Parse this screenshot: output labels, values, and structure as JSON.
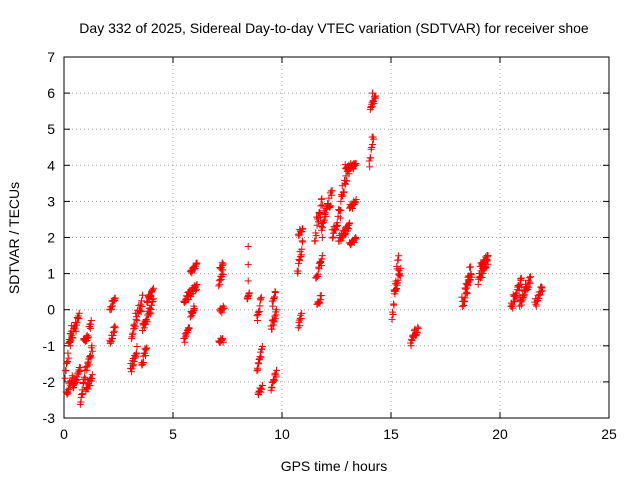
{
  "chart_data": {
    "type": "scatter",
    "title": "Day 332 of 2025, Sidereal Day-to-day VTEC variation (SDTVAR) for receiver shoe",
    "xlabel": "GPS time / hours",
    "ylabel": "SDTVAR / TECUs",
    "xlim": [
      0,
      25
    ],
    "ylim": [
      -3,
      7
    ],
    "xticks": [
      0,
      5,
      10,
      15,
      20,
      25
    ],
    "yticks": [
      -3,
      -2,
      -1,
      0,
      1,
      2,
      3,
      4,
      5,
      6,
      7
    ],
    "grid": true,
    "marker": "+",
    "color": "#ff0000",
    "segments": [
      {
        "x0": 0.05,
        "x1": 0.35,
        "y0": -1.9,
        "y1": -0.4
      },
      {
        "x0": 0.1,
        "x1": 0.4,
        "y0": -2.4,
        "y1": -1.8
      },
      {
        "x0": 0.25,
        "x1": 0.7,
        "y0": -1.0,
        "y1": -0.1
      },
      {
        "x0": 0.4,
        "x1": 0.75,
        "y0": -2.2,
        "y1": -1.6
      },
      {
        "x0": 0.75,
        "x1": 1.0,
        "y0": -2.7,
        "y1": -1.5
      },
      {
        "x0": 0.9,
        "x1": 1.25,
        "y0": -1.1,
        "y1": -0.3
      },
      {
        "x0": 1.0,
        "x1": 1.3,
        "y0": -2.3,
        "y1": -1.8
      },
      {
        "x0": 1.05,
        "x1": 1.3,
        "y0": -1.7,
        "y1": -1.0
      },
      {
        "x0": 2.1,
        "x1": 2.35,
        "y0": -1.0,
        "y1": -0.4
      },
      {
        "x0": 2.1,
        "x1": 2.35,
        "y0": 0.0,
        "y1": 0.4
      },
      {
        "x0": 3.05,
        "x1": 3.35,
        "y0": -1.8,
        "y1": -1.0
      },
      {
        "x0": 3.1,
        "x1": 3.6,
        "y0": -0.8,
        "y1": 0.4
      },
      {
        "x0": 3.55,
        "x1": 3.8,
        "y0": -1.6,
        "y1": -1.0
      },
      {
        "x0": 3.6,
        "x1": 4.1,
        "y0": -0.6,
        "y1": 0.3
      },
      {
        "x0": 3.8,
        "x1": 4.1,
        "y0": 0.2,
        "y1": 0.6
      },
      {
        "x0": 5.5,
        "x1": 5.75,
        "y0": -0.9,
        "y1": -0.4
      },
      {
        "x0": 5.5,
        "x1": 6.1,
        "y0": 0.2,
        "y1": 0.7
      },
      {
        "x0": 5.8,
        "x1": 6.1,
        "y0": 1.0,
        "y1": 1.3
      },
      {
        "x0": 5.8,
        "x1": 6.0,
        "y0": -0.2,
        "y1": 0.1
      },
      {
        "x0": 7.1,
        "x1": 7.3,
        "y0": -0.9,
        "y1": -0.8
      },
      {
        "x0": 7.15,
        "x1": 7.35,
        "y0": -0.1,
        "y1": 0.1
      },
      {
        "x0": 7.1,
        "x1": 7.3,
        "y0": 0.6,
        "y1": 1.1
      },
      {
        "x0": 7.15,
        "x1": 7.3,
        "y0": 1.1,
        "y1": 1.3
      },
      {
        "x0": 8.4,
        "x1": 8.5,
        "y0": 0.3,
        "y1": 0.5
      },
      {
        "x0": 8.85,
        "x1": 9.05,
        "y0": -0.3,
        "y1": 0.35
      },
      {
        "x0": 8.85,
        "x1": 9.1,
        "y0": -1.7,
        "y1": -1.0
      },
      {
        "x0": 8.9,
        "x1": 9.1,
        "y0": -2.35,
        "y1": -2.1
      },
      {
        "x0": 9.5,
        "x1": 9.75,
        "y0": -2.3,
        "y1": -1.6
      },
      {
        "x0": 9.5,
        "x1": 9.75,
        "y0": -0.6,
        "y1": 0.0
      },
      {
        "x0": 9.55,
        "x1": 9.7,
        "y0": 0.1,
        "y1": 0.5
      },
      {
        "x0": 10.7,
        "x1": 10.95,
        "y0": 1.0,
        "y1": 2.0
      },
      {
        "x0": 10.75,
        "x1": 10.9,
        "y0": -0.5,
        "y1": -0.1
      },
      {
        "x0": 10.75,
        "x1": 10.95,
        "y0": 2.0,
        "y1": 2.3
      },
      {
        "x0": 11.5,
        "x1": 11.85,
        "y0": 1.9,
        "y1": 3.2
      },
      {
        "x0": 11.55,
        "x1": 11.85,
        "y0": 0.8,
        "y1": 1.5
      },
      {
        "x0": 11.6,
        "x1": 11.8,
        "y0": 0.1,
        "y1": 0.4
      },
      {
        "x0": 11.8,
        "x1": 12.3,
        "y0": 2.2,
        "y1": 3.3
      },
      {
        "x0": 12.3,
        "x1": 12.7,
        "y0": 1.8,
        "y1": 3.0
      },
      {
        "x0": 12.6,
        "x1": 13.1,
        "y0": 1.9,
        "y1": 2.4
      },
      {
        "x0": 12.7,
        "x1": 13.1,
        "y0": 3.0,
        "y1": 4.0
      },
      {
        "x0": 12.9,
        "x1": 13.4,
        "y0": 3.9,
        "y1": 4.05
      },
      {
        "x0": 13.1,
        "x1": 13.4,
        "y0": 2.8,
        "y1": 3.1
      },
      {
        "x0": 13.1,
        "x1": 13.4,
        "y0": 1.8,
        "y1": 2.0
      },
      {
        "x0": 14.0,
        "x1": 14.2,
        "y0": 3.9,
        "y1": 5.1
      },
      {
        "x0": 14.05,
        "x1": 14.3,
        "y0": 5.5,
        "y1": 6.0
      },
      {
        "x0": 15.05,
        "x1": 15.35,
        "y0": -0.3,
        "y1": 1.6
      },
      {
        "x0": 15.15,
        "x1": 15.45,
        "y0": 0.4,
        "y1": 1.2
      },
      {
        "x0": 15.9,
        "x1": 16.25,
        "y0": -1.0,
        "y1": -0.4
      },
      {
        "x0": 18.25,
        "x1": 18.65,
        "y0": -0.1,
        "y1": 1.2
      },
      {
        "x0": 18.4,
        "x1": 18.7,
        "y0": 0.6,
        "y1": 1.0
      },
      {
        "x0": 19.0,
        "x1": 19.45,
        "y0": 0.7,
        "y1": 1.5
      },
      {
        "x0": 19.1,
        "x1": 19.45,
        "y0": 1.2,
        "y1": 1.5
      },
      {
        "x0": 20.5,
        "x1": 21.0,
        "y0": 0.0,
        "y1": 0.9
      },
      {
        "x0": 20.9,
        "x1": 21.4,
        "y0": 0.1,
        "y1": 1.0
      },
      {
        "x0": 21.6,
        "x1": 21.95,
        "y0": 0.1,
        "y1": 0.7
      }
    ],
    "points": [
      {
        "x": 8.45,
        "y": 1.75
      },
      {
        "x": 8.45,
        "y": 1.25
      },
      {
        "x": 8.45,
        "y": 0.8
      },
      {
        "x": 11.85,
        "y": 2.0
      },
      {
        "x": 14.15,
        "y": 6.0
      }
    ]
  }
}
